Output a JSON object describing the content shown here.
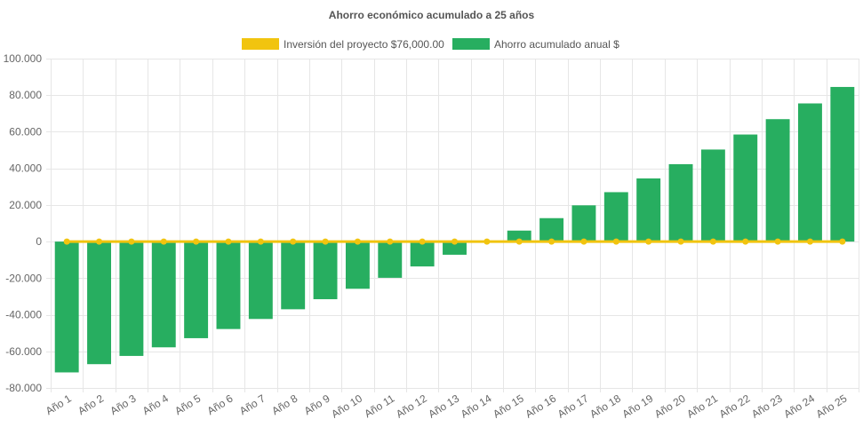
{
  "chart_data": {
    "type": "bar",
    "title": "Ahorro económico acumulado a 25 años",
    "xlabel": "",
    "ylabel": "",
    "categories": [
      "Año 1",
      "Año 2",
      "Año 3",
      "Año 4",
      "Año 5",
      "Año 6",
      "Año 7",
      "Año 8",
      "Año 9",
      "Año 10",
      "Año 11",
      "Año 12",
      "Año 13",
      "Año 14",
      "Año 15",
      "Año 16",
      "Año 17",
      "Año 18",
      "Año 19",
      "Año 20",
      "Año 21",
      "Año 22",
      "Año 23",
      "Año 24",
      "Año 25"
    ],
    "ylim": [
      -80000,
      100000
    ],
    "yticks": [
      100000,
      80000,
      60000,
      40000,
      20000,
      0,
      -20000,
      -40000,
      -60000,
      -80000
    ],
    "ytick_labels": [
      "100.000",
      "80.000",
      "60.000",
      "40.000",
      "20.000",
      "0",
      "-20.000",
      "-40.000",
      "-60.000",
      "-80.000"
    ],
    "grid": true,
    "legend_position": "top-center",
    "series": [
      {
        "name": "Inversión del proyecto $76,000.00",
        "type": "line",
        "color": "#f1c40f",
        "values": [
          0,
          0,
          0,
          0,
          0,
          0,
          0,
          0,
          0,
          0,
          0,
          0,
          0,
          0,
          0,
          0,
          0,
          0,
          0,
          0,
          0,
          0,
          0,
          0,
          0
        ]
      },
      {
        "name": "Ahorro acumulado anual $",
        "type": "bar",
        "color": "#27ae60",
        "values": [
          -71500,
          -67000,
          -62500,
          -57800,
          -52800,
          -47800,
          -42300,
          -37000,
          -31500,
          -25800,
          -19800,
          -13600,
          -7200,
          0,
          6000,
          12800,
          19800,
          27000,
          34500,
          42300,
          50300,
          58500,
          66900,
          75500,
          84500
        ]
      }
    ]
  }
}
